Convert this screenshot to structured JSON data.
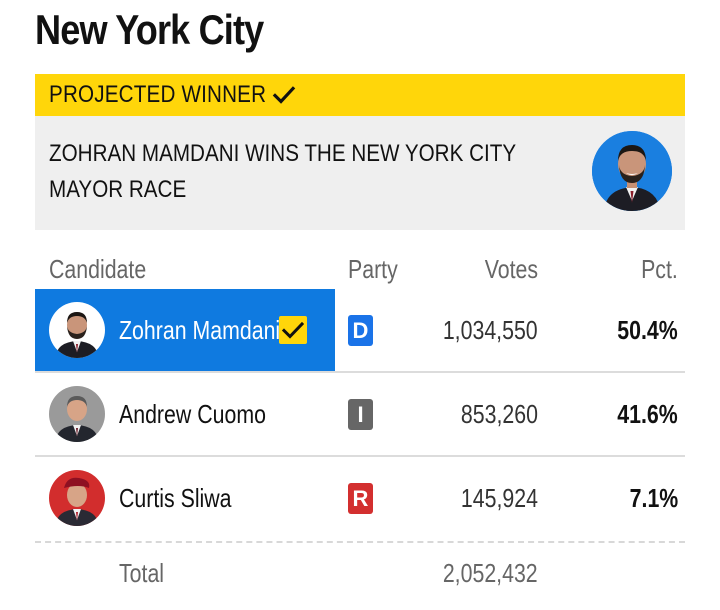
{
  "page": {
    "title": "New York City"
  },
  "banner": {
    "label": "PROJECTED WINNER",
    "icon": "checkmark-icon",
    "color": "#FFD60A"
  },
  "headline": {
    "text": "ZOHRAN MAMDANI WINS THE NEW YORK CITY MAYOR RACE",
    "avatar_icon": "candidate-photo-icon"
  },
  "table": {
    "columns": {
      "candidate": "Candidate",
      "party": "Party",
      "votes": "Votes",
      "pct": "Pct."
    },
    "rows": [
      {
        "name": "Zohran Mamdani",
        "party": "D",
        "party_color": "#1a73e8",
        "votes": "1,034,550",
        "pct": "50.4%",
        "winner": true
      },
      {
        "name": "Andrew Cuomo",
        "party": "I",
        "party_color": "#666666",
        "votes": "853,260",
        "pct": "41.6%",
        "winner": false
      },
      {
        "name": "Curtis Sliwa",
        "party": "R",
        "party_color": "#d32f2f",
        "votes": "145,924",
        "pct": "7.1%",
        "winner": false
      }
    ],
    "total": {
      "label": "Total",
      "votes": "2,052,432"
    }
  },
  "colors": {
    "winner_highlight": "#0f7ae0",
    "accent": "#FFD60A"
  }
}
